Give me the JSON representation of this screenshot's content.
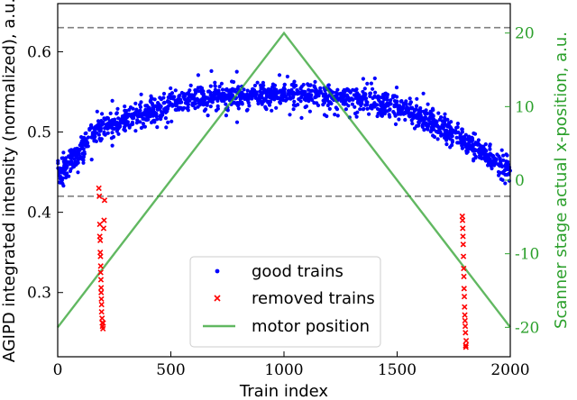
{
  "chart_data": {
    "type": "scatter",
    "title": "",
    "xlabel": "Train index",
    "ylabel": "AGIPD integrated intensity (normalized), a.u.",
    "y2label": "Scanner stage actual x-position, a.u.",
    "xlim": [
      0,
      2000
    ],
    "ylim": [
      0.22,
      0.66
    ],
    "y2lim": [
      -24,
      24
    ],
    "xticks": [
      0,
      500,
      1000,
      1500,
      2000
    ],
    "yticks": [
      0.3,
      0.4,
      0.5,
      0.6
    ],
    "y2ticks": [
      -20,
      -10,
      0,
      10,
      20
    ],
    "grid": false,
    "legend_position": "bottom-center",
    "colors": {
      "good": "#0000ff",
      "removed": "#ff0000",
      "motor": "#2ca02c",
      "threshold": "#808080",
      "right_axis": "#2ca02c"
    },
    "thresholds": [
      0.42,
      0.63
    ],
    "series": [
      {
        "name": "good trains",
        "kind": "scatter",
        "marker": "dot",
        "trend_x": [
          0,
          100,
          150,
          200,
          300,
          400,
          500,
          600,
          800,
          1000,
          1200,
          1400,
          1500,
          1600,
          1700,
          1800,
          1900,
          2000
        ],
        "trend_y": [
          0.45,
          0.475,
          0.495,
          0.505,
          0.515,
          0.525,
          0.535,
          0.54,
          0.545,
          0.548,
          0.545,
          0.538,
          0.532,
          0.52,
          0.505,
          0.49,
          0.47,
          0.45
        ],
        "spread": 0.013,
        "count": 1650
      },
      {
        "name": "removed trains",
        "kind": "scatter",
        "marker": "x",
        "x": [
          182,
          184,
          186,
          186,
          188,
          188,
          189,
          190,
          190,
          191,
          192,
          192,
          193,
          194,
          194,
          196,
          197,
          198,
          200,
          201,
          203,
          205,
          207,
          1788,
          1789,
          1790,
          1791,
          1792,
          1793,
          1794,
          1795,
          1796,
          1797,
          1798,
          1799,
          1800,
          1801,
          1802,
          1803,
          1804,
          1805
        ],
        "y": [
          0.43,
          0.42,
          0.385,
          0.37,
          0.365,
          0.35,
          0.345,
          0.333,
          0.325,
          0.316,
          0.306,
          0.3,
          0.292,
          0.285,
          0.276,
          0.268,
          0.262,
          0.258,
          0.255,
          0.262,
          0.38,
          0.39,
          0.415,
          0.395,
          0.39,
          0.38,
          0.37,
          0.36,
          0.345,
          0.33,
          0.32,
          0.305,
          0.295,
          0.282,
          0.272,
          0.265,
          0.258,
          0.25,
          0.234,
          0.232,
          0.24
        ]
      },
      {
        "name": "motor position",
        "kind": "line",
        "axis": "right",
        "x": [
          0,
          1000,
          2000
        ],
        "y": [
          -20,
          20,
          -20
        ]
      }
    ]
  }
}
